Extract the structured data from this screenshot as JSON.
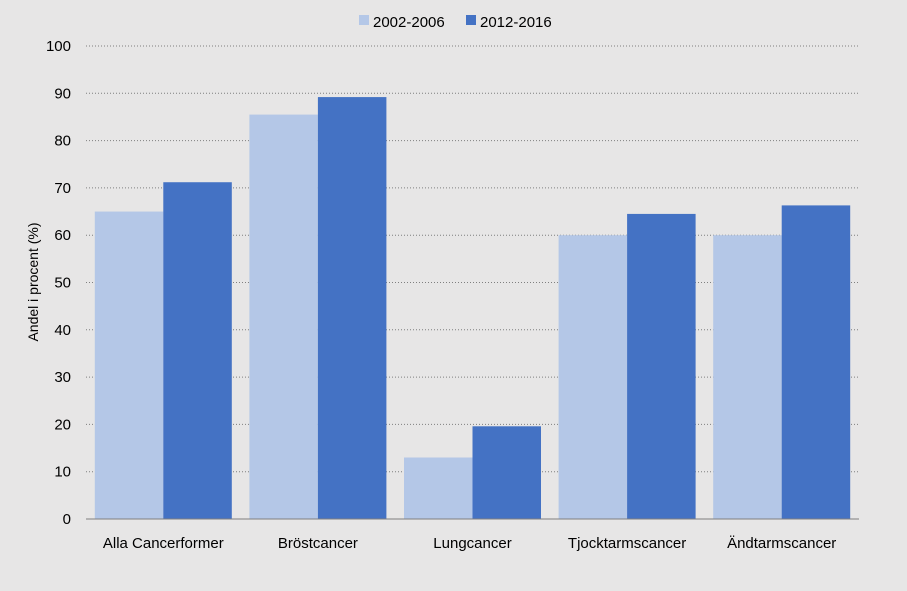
{
  "chart_data": {
    "type": "bar",
    "ylabel": "Andel i procent (%)",
    "xlabel": "",
    "ylim": [
      0,
      100
    ],
    "yticks": [
      "0",
      "10",
      "20",
      "30",
      "40",
      "50",
      "60",
      "70",
      "80",
      "90",
      "100"
    ],
    "grid": true,
    "legend_position": "top",
    "categories": [
      "Alla Cancerformer",
      "Bröstcancer",
      "Lungcancer",
      "Tjocktarmscancer",
      "Ändtarmscancer"
    ],
    "series": [
      {
        "name": "2002-2006",
        "color": "#b4c7e7",
        "values": [
          65,
          85.5,
          13,
          60,
          60
        ]
      },
      {
        "name": "2012-2016",
        "color": "#4472c4",
        "values": [
          71.2,
          89.2,
          19.6,
          64.5,
          66.3
        ]
      }
    ]
  }
}
